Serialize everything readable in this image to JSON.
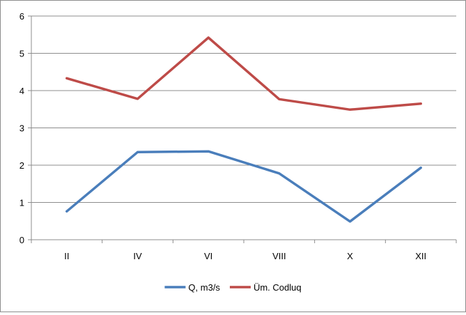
{
  "chart_data": {
    "type": "line",
    "categories": [
      "II",
      "IV",
      "VI",
      "VIII",
      "X",
      "XII"
    ],
    "ylim": [
      0,
      6
    ],
    "yticks": [
      0,
      1,
      2,
      3,
      4,
      5,
      6
    ],
    "grid": true,
    "legend_position": "bottom",
    "title": "",
    "xlabel": "",
    "ylabel": "",
    "series": [
      {
        "name": "Q, m3/s",
        "color": "#4a7ebb",
        "values": [
          0.76,
          2.35,
          2.37,
          1.78,
          0.49,
          1.93
        ]
      },
      {
        "name": "Üm. Codluq",
        "color": "#be4b48",
        "values": [
          4.33,
          3.78,
          5.42,
          3.77,
          3.49,
          3.65
        ]
      }
    ]
  }
}
